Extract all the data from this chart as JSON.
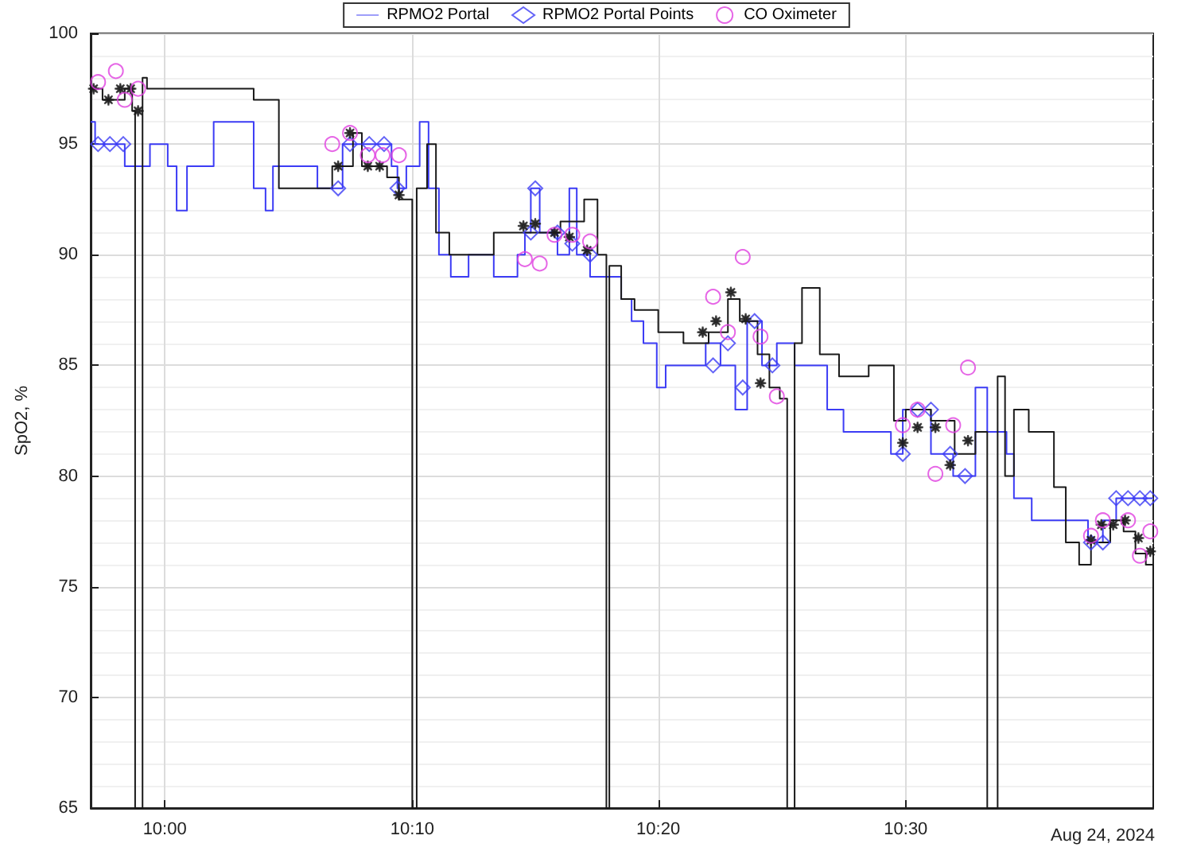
{
  "chart_data": {
    "type": "step",
    "ylabel": "SpO2, %",
    "annotations": [
      "Aug 24, 2024"
    ],
    "xlim": [
      9.95,
      10.667
    ],
    "xticks": [
      {
        "value": 10,
        "label": "10:00"
      },
      {
        "value": 10.167,
        "label": "10:10"
      },
      {
        "value": 10.333,
        "label": "10:20"
      },
      {
        "value": 10.5,
        "label": "10:30"
      }
    ],
    "ylim": [
      65,
      100
    ],
    "yticks": [
      65,
      70,
      75,
      80,
      85,
      90,
      95,
      100
    ],
    "grid": true,
    "legend": "top",
    "series": [
      {
        "name": "RPMO2 Portal",
        "color": "#3c3cf5",
        "marker": "none",
        "x": [
          9.95,
          9.953,
          9.973,
          9.99,
          10.002,
          10.008,
          10.015,
          10.033,
          10.06,
          10.068,
          10.073,
          10.103,
          10.12,
          10.153,
          10.157,
          10.163,
          10.172,
          10.178,
          10.185,
          10.193,
          10.205,
          10.222,
          10.238,
          10.243,
          10.247,
          10.253,
          10.265,
          10.273,
          10.278,
          10.287,
          10.308,
          10.315,
          10.323,
          10.332,
          10.338,
          10.365,
          10.375,
          10.385,
          10.393,
          10.403,
          10.413,
          10.425,
          10.447,
          10.458,
          10.49,
          10.498,
          10.517,
          10.532,
          10.547,
          10.555,
          10.568,
          10.573,
          10.585,
          10.623,
          10.633,
          10.642,
          10.667
        ],
        "values": [
          96,
          95,
          94,
          95,
          94,
          92,
          94,
          96,
          93,
          92,
          94,
          93,
          95,
          94,
          93,
          94,
          96,
          93,
          90,
          89,
          90,
          89,
          90,
          91,
          93,
          91,
          90,
          93,
          90,
          89,
          88,
          87,
          86,
          84,
          85,
          86,
          85,
          83,
          87,
          85,
          86,
          85,
          83,
          82,
          81,
          83,
          81,
          80,
          84,
          82,
          81,
          79,
          78,
          77,
          78,
          79,
          79
        ]
      },
      {
        "name": "RPMO2 Portal Points",
        "type": "scatter",
        "color": "#3c3cf5",
        "marker": "diamond",
        "x": [
          9.955,
          9.963,
          9.972,
          10.117,
          10.125,
          10.138,
          10.148,
          10.157,
          10.247,
          10.25,
          10.265,
          10.275,
          10.287,
          10.37,
          10.38,
          10.39,
          10.398,
          10.41,
          10.498,
          10.508,
          10.517,
          10.53,
          10.54,
          10.625,
          10.633,
          10.642,
          10.65,
          10.658,
          10.665
        ],
        "values": [
          95,
          95,
          95,
          93,
          95,
          95,
          95,
          93,
          91,
          93,
          91,
          90.5,
          90,
          85,
          86,
          84,
          87,
          85,
          81,
          83,
          83,
          81,
          80,
          77,
          77,
          79,
          79,
          79,
          79
        ]
      },
      {
        "color": "#1a1a1a",
        "marker": "none",
        "x": [
          9.95,
          9.958,
          9.973,
          9.978,
          9.98,
          9.983,
          9.985,
          9.988,
          10.033,
          10.06,
          10.077,
          10.113,
          10.127,
          10.133,
          10.15,
          10.158,
          10.167,
          10.17,
          10.177,
          10.183,
          10.192,
          10.222,
          10.267,
          10.283,
          10.292,
          10.298,
          10.3,
          10.308,
          10.317,
          10.333,
          10.35,
          10.367,
          10.38,
          10.388,
          10.4,
          10.408,
          10.415,
          10.42,
          10.425,
          10.43,
          10.442,
          10.455,
          10.475,
          10.492,
          10.5,
          10.517,
          10.533,
          10.547,
          10.555,
          10.562,
          10.567,
          10.573,
          10.583,
          10.6,
          10.608,
          10.617,
          10.625,
          10.638,
          10.647,
          10.655,
          10.662,
          10.667
        ],
        "values": [
          97.5,
          97,
          97.5,
          96.5,
          65,
          65,
          98,
          97.5,
          97.5,
          97,
          93,
          94,
          95.5,
          94,
          93.5,
          92.5,
          65,
          93,
          95,
          91,
          90,
          91,
          91.5,
          92.5,
          90,
          65,
          89.5,
          88,
          87.5,
          86.5,
          86,
          86.5,
          88,
          87,
          85.5,
          84,
          83.5,
          65,
          86,
          88.5,
          85.5,
          84.5,
          85,
          82.5,
          83,
          82.5,
          81,
          82,
          65,
          84.5,
          80,
          83,
          82,
          79.5,
          77,
          76,
          77,
          78,
          77.5,
          76.5,
          76,
          65
        ]
      },
      {
        "type": "scatter",
        "color": "#1a1a1a",
        "marker": "star",
        "x": [
          9.952,
          9.962,
          9.97,
          9.977,
          9.982,
          10.117,
          10.125,
          10.137,
          10.145,
          10.158,
          10.242,
          10.25,
          10.263,
          10.273,
          10.285,
          10.363,
          10.372,
          10.382,
          10.392,
          10.402,
          10.498,
          10.508,
          10.52,
          10.53,
          10.542,
          10.625,
          10.632,
          10.64,
          10.648,
          10.657,
          10.665
        ],
        "values": [
          97.5,
          97,
          97.5,
          97.5,
          96.5,
          94,
          95.5,
          94,
          94,
          92.7,
          91.3,
          91.4,
          91,
          90.8,
          90.2,
          86.5,
          87,
          88.3,
          87.1,
          84.2,
          81.5,
          82.2,
          82.2,
          80.5,
          81.6,
          77.1,
          77.8,
          77.8,
          78,
          77.2,
          76.6
        ]
      },
      {
        "name": "CO Oximeter",
        "type": "scatter",
        "color": "#e040e0",
        "marker": "circle",
        "x": [
          9.955,
          9.967,
          9.973,
          9.982,
          10.113,
          10.125,
          10.137,
          10.147,
          10.158,
          10.243,
          10.253,
          10.263,
          10.275,
          10.287,
          10.37,
          10.38,
          10.39,
          10.402,
          10.413,
          10.498,
          10.508,
          10.52,
          10.532,
          10.542,
          10.625,
          10.633,
          10.65,
          10.658,
          10.665
        ],
        "values": [
          97.8,
          98.3,
          97,
          97.5,
          95,
          95.5,
          94.5,
          94.5,
          94.5,
          89.8,
          89.6,
          90.9,
          90.9,
          90.6,
          88.1,
          86.5,
          89.9,
          86.3,
          83.6,
          82.3,
          83,
          80.1,
          82.3,
          84.9,
          77.3,
          78,
          78,
          76.4,
          77.5
        ]
      }
    ]
  }
}
